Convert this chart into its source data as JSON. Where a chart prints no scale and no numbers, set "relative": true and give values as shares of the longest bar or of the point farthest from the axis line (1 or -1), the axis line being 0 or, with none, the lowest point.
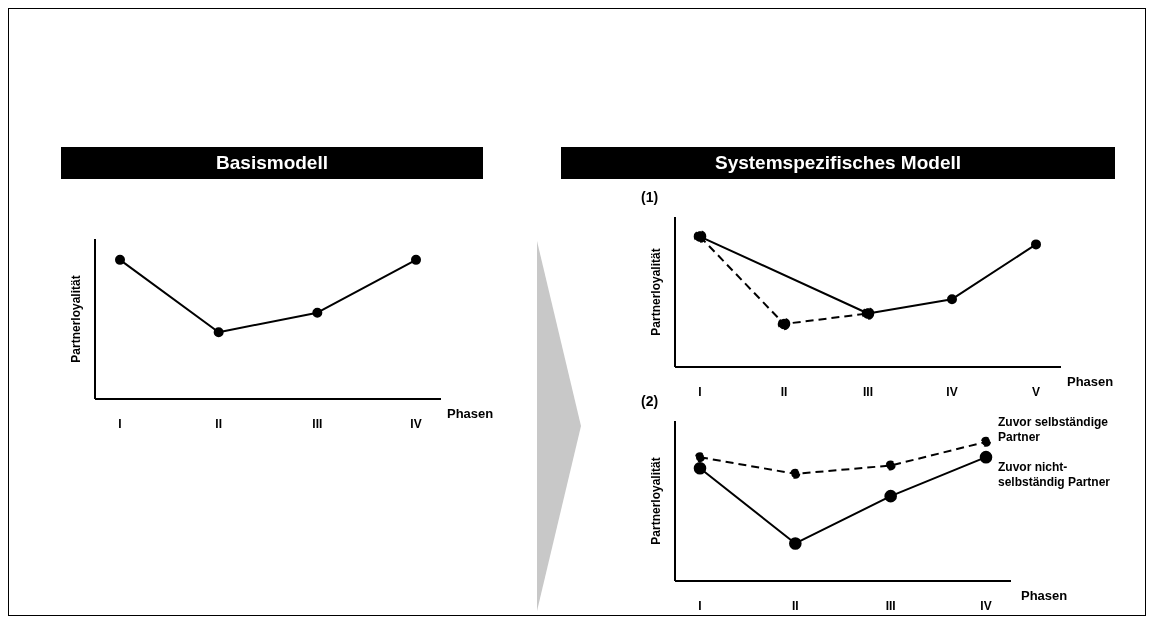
{
  "chart_data": [
    {
      "type": "line",
      "title": "Basismodell",
      "xlabel": "Phasen",
      "ylabel": "Partnerloyalität",
      "categories": [
        "I",
        "II",
        "III",
        "IV"
      ],
      "relative": true,
      "marker": "circle",
      "series": [
        {
          "color": "#000000",
          "line_style": "solid",
          "values": [
            1,
            0.48,
            0.62,
            1
          ]
        }
      ]
    },
    {
      "type": "line",
      "title": "Systemspezifisches Modell",
      "subtitle": "(1)",
      "xlabel": "Phasen",
      "ylabel": "Partnerloyalität",
      "categories": [
        "I",
        "II",
        "III",
        "IV",
        "V"
      ],
      "relative": true,
      "marker": "circle",
      "series": [
        {
          "color": "#000000",
          "line_style": "solid",
          "values": [
            1,
            null,
            0.41,
            0.52,
            0.94
          ]
        },
        {
          "color": "#000000",
          "line_style": "dashed",
          "values": [
            1,
            0.33,
            0.41,
            null,
            null
          ]
        }
      ]
    },
    {
      "type": "line",
      "subtitle": "(2)",
      "xlabel": "Phasen",
      "ylabel": "Partnerloyalität",
      "categories": [
        "I",
        "II",
        "III",
        "IV"
      ],
      "relative": true,
      "marker": "circle",
      "series": [
        {
          "name": "Zuvor selbständige Partner",
          "color": "#000000",
          "line_style": "dashed",
          "values": [
            0.89,
            0.77,
            0.83,
            1
          ]
        },
        {
          "name": "Zuvor nicht-selbständig Partner",
          "color": "#000000",
          "line_style": "solid",
          "values": [
            0.81,
            0.27,
            0.61,
            0.89
          ]
        }
      ]
    }
  ]
}
